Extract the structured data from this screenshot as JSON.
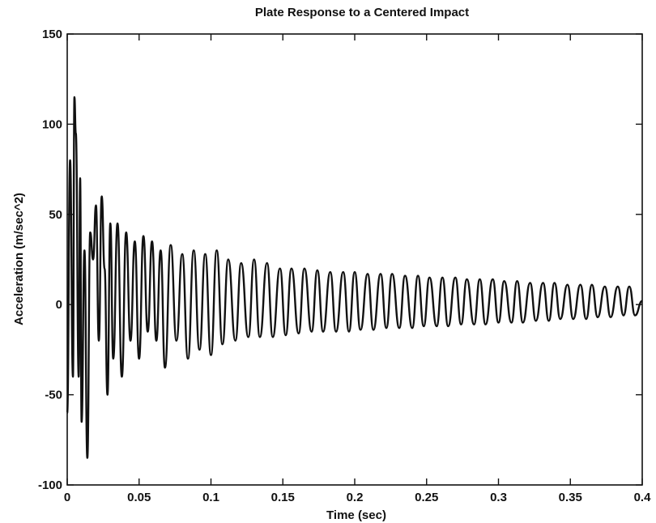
{
  "chart_data": {
    "type": "line",
    "title": "Plate Response to a Centered Impact",
    "xlabel": "Time (sec)",
    "ylabel": "Acceleration (m/sec^2)",
    "xlim": [
      0,
      0.4
    ],
    "ylim": [
      -100,
      150
    ],
    "grid": false,
    "x_ticks": [
      0,
      0.05,
      0.1,
      0.15,
      0.2,
      0.25,
      0.3,
      0.35,
      0.4
    ],
    "x_tick_labels": [
      "0",
      "0.05",
      "0.1",
      "0.15",
      "0.2",
      "0.25",
      "0.3",
      "0.35",
      "0.4"
    ],
    "y_ticks": [
      -100,
      -50,
      0,
      50,
      100,
      150
    ],
    "y_tick_labels": [
      "-100",
      "-50",
      "0",
      "50",
      "100",
      "150"
    ],
    "series": [
      {
        "x": [
          0,
          0.002,
          0.004,
          0.005,
          0.006,
          0.008,
          0.009,
          0.01,
          0.012,
          0.014,
          0.016,
          0.018,
          0.02,
          0.022,
          0.024,
          0.026,
          0.028,
          0.03,
          0.032,
          0.035,
          0.038,
          0.041,
          0.044,
          0.047,
          0.05,
          0.053,
          0.056,
          0.059,
          0.062,
          0.065,
          0.068,
          0.072,
          0.076,
          0.08,
          0.084,
          0.088,
          0.092,
          0.096,
          0.1,
          0.104,
          0.108,
          0.112,
          0.117,
          0.121,
          0.126,
          0.13,
          0.134,
          0.139,
          0.143,
          0.148,
          0.152,
          0.156,
          0.161,
          0.165,
          0.17,
          0.174,
          0.178,
          0.183,
          0.187,
          0.192,
          0.196,
          0.2,
          0.204,
          0.209,
          0.213,
          0.218,
          0.222,
          0.226,
          0.231,
          0.235,
          0.24,
          0.244,
          0.248,
          0.252,
          0.257,
          0.261,
          0.265,
          0.27,
          0.274,
          0.278,
          0.283,
          0.287,
          0.291,
          0.296,
          0.3,
          0.304,
          0.309,
          0.313,
          0.317,
          0.322,
          0.326,
          0.331,
          0.335,
          0.339,
          0.343,
          0.348,
          0.352,
          0.357,
          0.361,
          0.365,
          0.369,
          0.374,
          0.378,
          0.383,
          0.387,
          0.391,
          0.395,
          0.4
        ],
        "y": [
          -60,
          80,
          -40,
          115,
          95,
          -40,
          70,
          -65,
          30,
          -85,
          40,
          25,
          55,
          -20,
          60,
          20,
          -50,
          45,
          -30,
          45,
          -40,
          40,
          -20,
          35,
          -30,
          38,
          -15,
          35,
          -20,
          30,
          -35,
          33,
          -20,
          28,
          -30,
          30,
          -25,
          28,
          -28,
          30,
          -22,
          25,
          -20,
          23,
          -18,
          25,
          -18,
          23,
          -18,
          20,
          -17,
          20,
          -16,
          20,
          -15,
          19,
          -15,
          18,
          -15,
          18,
          -15,
          18,
          -14,
          17,
          -14,
          17,
          -13,
          17,
          -13,
          16,
          -13,
          16,
          -12,
          15,
          -12,
          15,
          -12,
          15,
          -11,
          14,
          -11,
          14,
          -11,
          14,
          -10,
          13,
          -10,
          13,
          -10,
          12,
          -9,
          12,
          -9,
          12,
          -8,
          11,
          -8,
          11,
          -8,
          11,
          -7,
          10,
          -7,
          10,
          -6,
          10,
          -6,
          2
        ]
      }
    ]
  }
}
